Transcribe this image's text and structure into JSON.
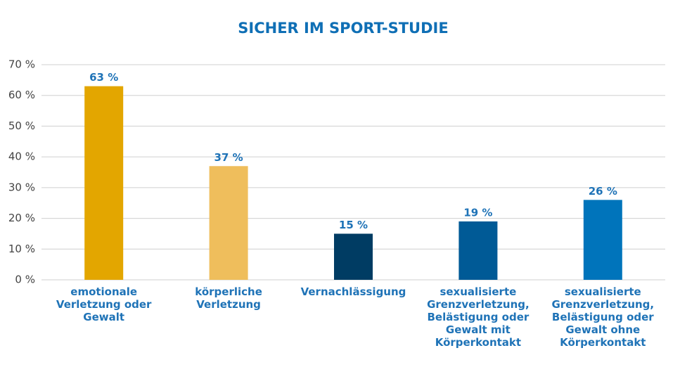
{
  "chart_data": {
    "type": "bar",
    "title": "SICHER IM SPORT-STUDIE",
    "categories": [
      "emotionale Verletzung oder Gewalt",
      "körperliche Verletzung",
      "Vernachlässigung",
      "sexualisierte Grenzverletzung, Belästigung oder Gewalt mit Körperkontakt",
      "sexualisierte Grenzverletzung, Belästigung oder Gewalt ohne Körperkontakt"
    ],
    "values": [
      63,
      37,
      15,
      19,
      26
    ],
    "value_labels": [
      "63 %",
      "37 %",
      "15 %",
      "19 %",
      "26 %"
    ],
    "colors": [
      "#e3a600",
      "#efbe5c",
      "#003c63",
      "#005a96",
      "#0074bb"
    ],
    "ylim": [
      0,
      70
    ],
    "yticks": [
      {
        "value": 0,
        "label": "0 %"
      },
      {
        "value": 10,
        "label": "10 %"
      },
      {
        "value": 20,
        "label": "20 %"
      },
      {
        "value": 30,
        "label": "30 %"
      },
      {
        "value": 40,
        "label": "40 %"
      },
      {
        "value": 50,
        "label": "50 %"
      },
      {
        "value": 60,
        "label": "60 %"
      },
      {
        "value": 70,
        "label": "70 %"
      }
    ],
    "grid": true
  }
}
